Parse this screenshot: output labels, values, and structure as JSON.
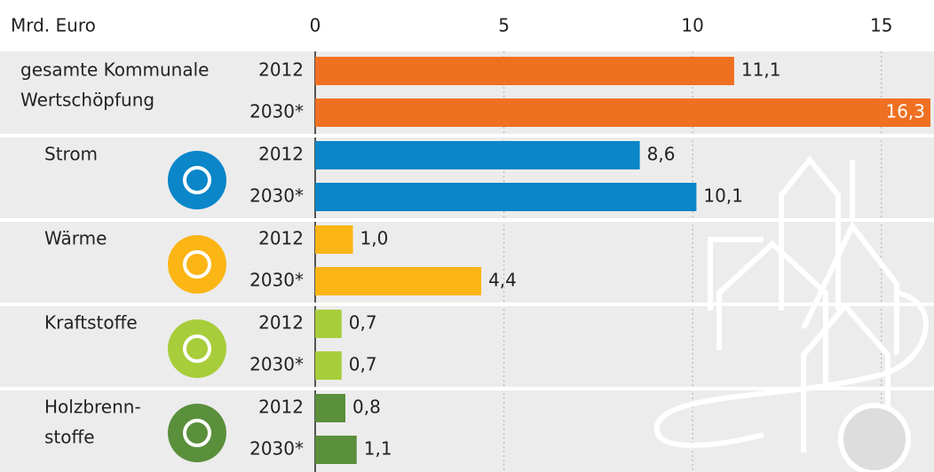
{
  "chart_data": {
    "type": "grouped-hbar",
    "unit_label": "Mrd. Euro",
    "xlim": [
      0,
      16.3
    ],
    "xticks": [
      0,
      5,
      10,
      15
    ],
    "grid": true,
    "groups": [
      {
        "name": [
          "gesamte Kommunale",
          "Wertschöpfung"
        ],
        "color": "#f07022",
        "years": [
          "2012",
          "2030*"
        ],
        "values": [
          11.1,
          16.3
        ],
        "value_labels": [
          "11,1",
          "16,3"
        ]
      },
      {
        "name": [
          "Strom"
        ],
        "color": "#0a86c9",
        "years": [
          "2012",
          "2030*"
        ],
        "values": [
          8.6,
          10.1
        ],
        "value_labels": [
          "8,6",
          "10,1"
        ]
      },
      {
        "name": [
          "Wärme"
        ],
        "color": "#fbb515",
        "years": [
          "2012",
          "2030*"
        ],
        "values": [
          1.0,
          4.4
        ],
        "value_labels": [
          "1,0",
          "4,4"
        ]
      },
      {
        "name": [
          "Kraftstoffe"
        ],
        "color": "#a7cd3a",
        "years": [
          "2012",
          "2030*"
        ],
        "values": [
          0.7,
          0.7
        ],
        "value_labels": [
          "0,7",
          "0,7"
        ]
      },
      {
        "name": [
          "Holzbrenn-",
          "stoffe"
        ],
        "color": "#5a8f3c",
        "years": [
          "2012",
          "2030*"
        ],
        "values": [
          0.8,
          1.1
        ],
        "value_labels": [
          "0,8",
          "1,1"
        ]
      }
    ]
  }
}
